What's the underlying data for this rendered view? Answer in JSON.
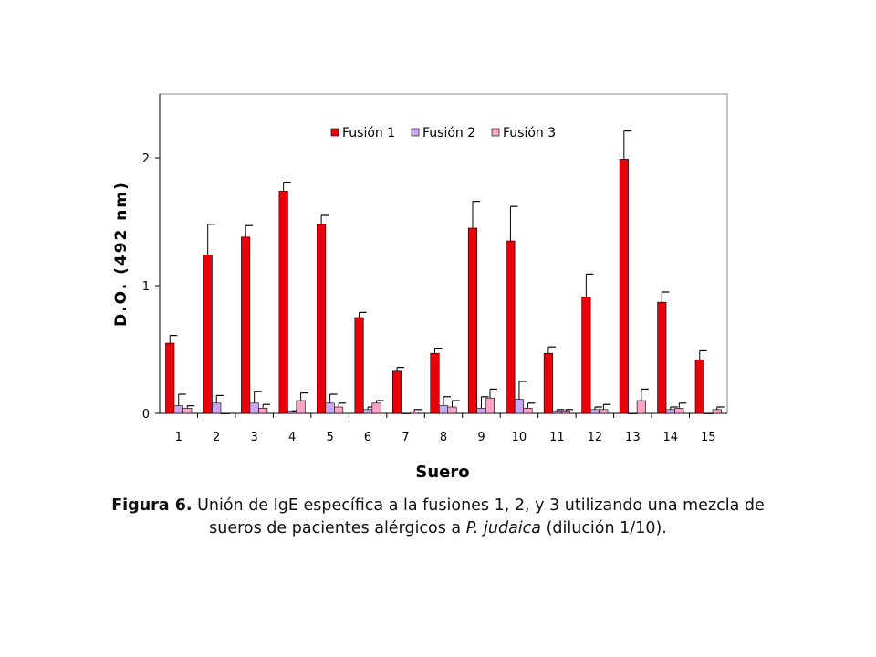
{
  "chart_data": {
    "type": "bar",
    "xlabel": "Suero",
    "ylabel": "D.O. (492 nm)",
    "categories": [
      "1",
      "2",
      "3",
      "4",
      "5",
      "6",
      "7",
      "8",
      "9",
      "10",
      "11",
      "12",
      "13",
      "14",
      "15"
    ],
    "series": [
      {
        "name": "Fusión 1",
        "color": "#e8000b",
        "values": [
          0.55,
          1.24,
          1.38,
          1.74,
          1.48,
          0.75,
          0.33,
          0.47,
          1.45,
          1.35,
          0.47,
          0.91,
          1.99,
          0.87,
          0.42
        ],
        "errors": [
          0.06,
          0.24,
          0.09,
          0.07,
          0.07,
          0.04,
          0.03,
          0.04,
          0.21,
          0.27,
          0.05,
          0.18,
          0.22,
          0.08,
          0.07
        ]
      },
      {
        "name": "Fusión 2",
        "color": "#c9a7f5",
        "values": [
          0.06,
          0.08,
          0.08,
          0.02,
          0.08,
          0.03,
          0.0,
          0.06,
          0.04,
          0.11,
          0.02,
          0.03,
          0.0,
          0.03,
          0.0
        ],
        "errors": [
          0.09,
          0.06,
          0.09,
          0.0,
          0.07,
          0.02,
          0.0,
          0.07,
          0.09,
          0.14,
          0.01,
          0.02,
          0.0,
          0.02,
          0.0
        ]
      },
      {
        "name": "Fusión 3",
        "color": "#f7a3c6",
        "values": [
          0.04,
          0.0,
          0.04,
          0.1,
          0.05,
          0.08,
          0.01,
          0.05,
          0.12,
          0.04,
          0.02,
          0.03,
          0.1,
          0.04,
          0.03
        ],
        "errors": [
          0.02,
          0.0,
          0.03,
          0.06,
          0.03,
          0.02,
          0.02,
          0.05,
          0.07,
          0.04,
          0.01,
          0.04,
          0.09,
          0.04,
          0.02
        ]
      }
    ],
    "ylim": [
      0,
      2.5
    ],
    "yticks": [
      0,
      1,
      2
    ],
    "grid": false,
    "legend_position": "top"
  },
  "caption": {
    "label": "Figura 6.",
    "text1": " Unión de IgE específica a la fusiones 1, 2, y 3 utilizando una mezcla de sueros de pacientes alérgicos a ",
    "italic": "P. judaica",
    "text2": " (dilución 1/10)."
  }
}
